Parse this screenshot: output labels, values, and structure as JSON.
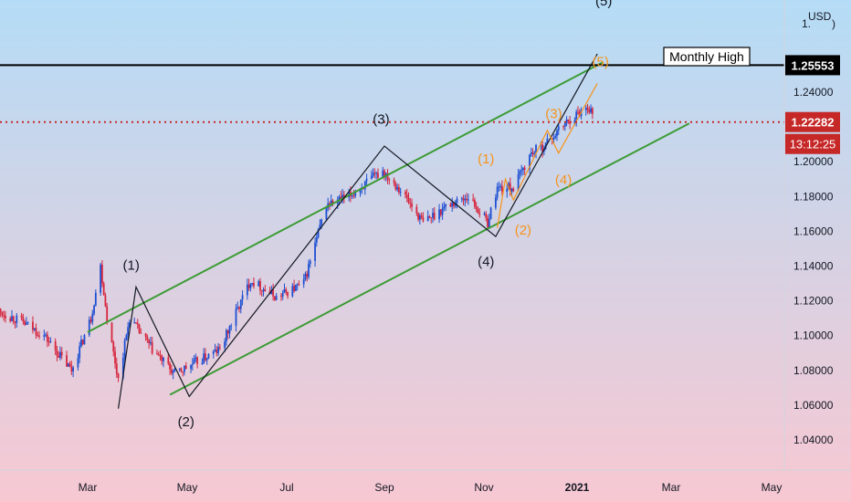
{
  "chart_data": {
    "type": "candlestick",
    "symbol_currency": "USD",
    "y_axis": {
      "min": 1.02,
      "max": 1.3,
      "ticks": [
        "1.04000",
        "1.06000",
        "1.08000",
        "1.10000",
        "1.12000",
        "1.14000",
        "1.16000",
        "1.18000",
        "1.20000",
        "1.24000"
      ],
      "partial_top_label": "1."
    },
    "x_axis": {
      "ticks": [
        "Mar",
        "May",
        "Jul",
        "Sep",
        "Nov",
        "2021",
        "Mar",
        "May"
      ]
    },
    "price_series": [
      [
        "2020-01-06",
        1.114
      ],
      [
        "2020-01-20",
        1.108
      ],
      [
        "2020-02-03",
        1.1
      ],
      [
        "2020-02-20",
        1.08
      ],
      [
        "2020-03-03",
        1.11
      ],
      [
        "2020-03-09",
        1.14
      ],
      [
        "2020-03-13",
        1.11
      ],
      [
        "2020-03-20",
        1.075
      ],
      [
        "2020-03-27",
        1.11
      ],
      [
        "2020-04-10",
        1.092
      ],
      [
        "2020-04-24",
        1.078
      ],
      [
        "2020-05-08",
        1.085
      ],
      [
        "2020-05-22",
        1.092
      ],
      [
        "2020-06-10",
        1.132
      ],
      [
        "2020-06-26",
        1.122
      ],
      [
        "2020-07-13",
        1.13
      ],
      [
        "2020-07-27",
        1.175
      ],
      [
        "2020-08-10",
        1.18
      ],
      [
        "2020-08-31",
        1.195
      ],
      [
        "2020-09-10",
        1.185
      ],
      [
        "2020-09-25",
        1.165
      ],
      [
        "2020-10-10",
        1.175
      ],
      [
        "2020-10-23",
        1.18
      ],
      [
        "2020-11-04",
        1.165
      ],
      [
        "2020-11-10",
        1.185
      ],
      [
        "2020-11-20",
        1.185
      ],
      [
        "2020-12-01",
        1.205
      ],
      [
        "2020-12-10",
        1.21
      ],
      [
        "2020-12-22",
        1.222
      ],
      [
        "2021-01-05",
        1.232
      ],
      [
        "2021-01-08",
        1.228
      ]
    ],
    "channel_lines": [
      {
        "color": "#3d9b35",
        "points": [
          [
            "2020-03-01",
            1.102
          ],
          [
            "2021-01-14",
            1.257
          ]
        ]
      },
      {
        "color": "#3d9b35",
        "points": [
          [
            "2020-04-21",
            1.066
          ],
          [
            "2021-03-09",
            1.222
          ]
        ]
      }
    ],
    "wave_lines": [
      {
        "color": "#131722",
        "points": [
          [
            "2020-03-20",
            1.058
          ],
          [
            "2020-03-31",
            1.128
          ],
          [
            "2020-05-03",
            1.065
          ],
          [
            "2020-09-01",
            1.209
          ],
          [
            "2020-11-09",
            1.157
          ],
          [
            "2021-01-11",
            1.262
          ]
        ]
      },
      {
        "color": "#f7931a",
        "points": [
          [
            "2020-11-10",
            1.162
          ],
          [
            "2020-11-15",
            1.19
          ],
          [
            "2020-11-20",
            1.178
          ],
          [
            "2020-12-11",
            1.218
          ],
          [
            "2020-12-18",
            1.205
          ],
          [
            "2021-01-11",
            1.245
          ]
        ]
      }
    ],
    "wave_labels": [
      {
        "text": "(1)",
        "color": "#131722",
        "x": "2020-03-28",
        "y": 1.138
      },
      {
        "text": "(2)",
        "color": "#131722",
        "x": "2020-05-01",
        "y": 1.048
      },
      {
        "text": "(3)",
        "color": "#131722",
        "x": "2020-08-30",
        "y": 1.222
      },
      {
        "text": "(4)",
        "color": "#131722",
        "x": "2020-11-03",
        "y": 1.14
      },
      {
        "text": "(5)",
        "color": "#131722",
        "x": "2021-01-15",
        "y": 1.29
      },
      {
        "text": "(1)",
        "color": "#f7931a",
        "x": "2020-11-03",
        "y": 1.199
      },
      {
        "text": "(2)",
        "color": "#f7931a",
        "x": "2020-11-26",
        "y": 1.158
      },
      {
        "text": "(3)",
        "color": "#f7931a",
        "x": "2020-12-15",
        "y": 1.225
      },
      {
        "text": "(4)",
        "color": "#f7931a",
        "x": "2020-12-21",
        "y": 1.187
      },
      {
        "text": "(5)",
        "color": "#f7931a",
        "x": "2021-01-13",
        "y": 1.255
      }
    ],
    "horizontal_levels": [
      {
        "name": "Monthly High",
        "price": 1.25553,
        "label": "1.25553",
        "line_color": "#000000",
        "style": "solid"
      },
      {
        "name": "Current Price",
        "price": 1.22282,
        "label": "1.22282",
        "countdown": "13:12:25",
        "line_color": "#c62828",
        "style": "dotted"
      }
    ],
    "annotation": "Monthly High",
    "colors": {
      "up_candle": "#1e50d2",
      "down_candle": "#d7263d",
      "background_top": "#b5dcf6",
      "background_bottom": "#f7c8d2",
      "channel": "#3d9b35",
      "wave_primary": "#131722",
      "wave_sub": "#f7931a",
      "current_price": "#c62828"
    }
  }
}
